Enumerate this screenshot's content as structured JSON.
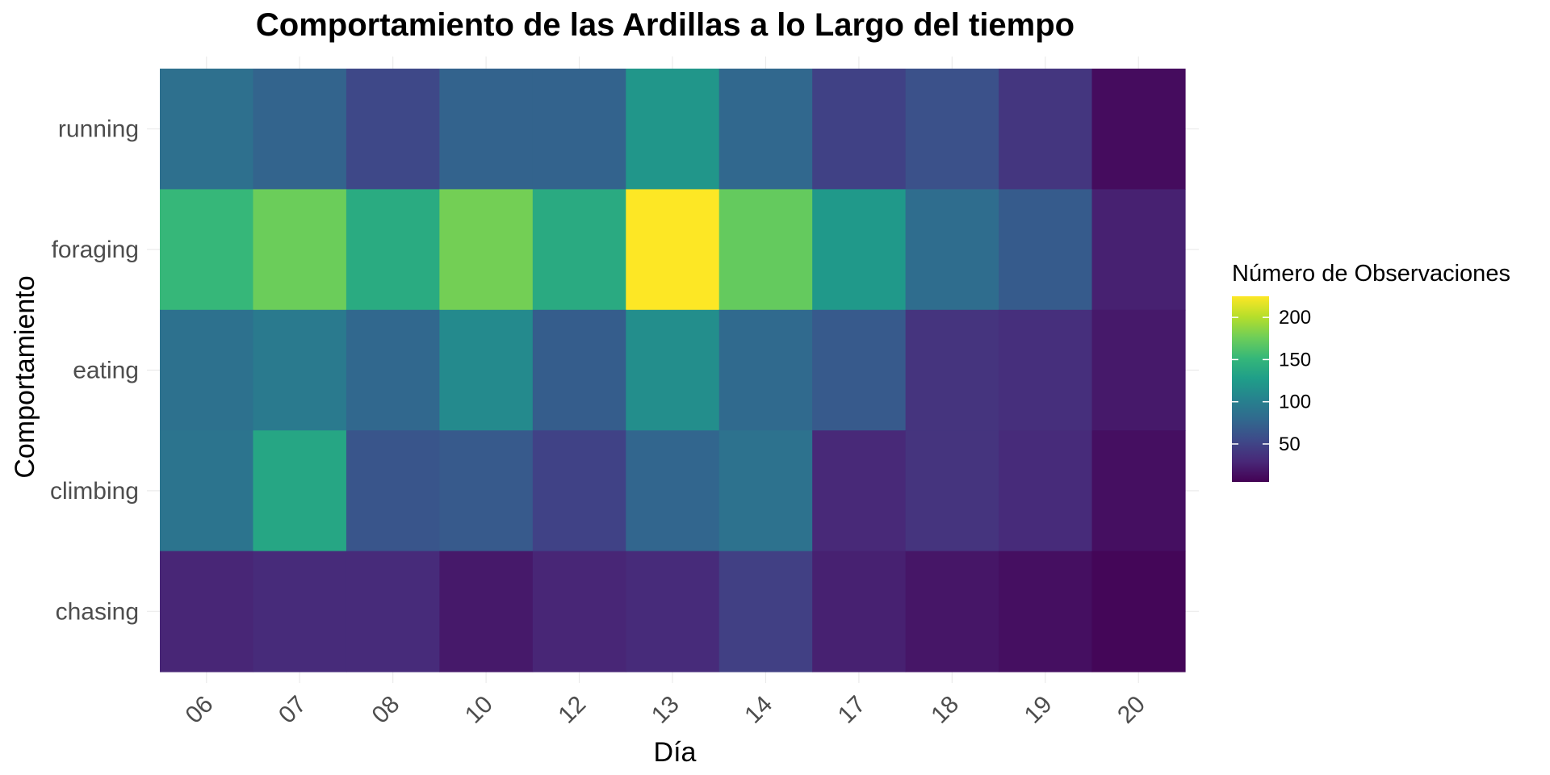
{
  "chart_data": {
    "type": "heatmap",
    "title": "Comportamiento de las Ardillas a lo Largo del tiempo",
    "xlabel": "Día",
    "ylabel": "Comportamiento",
    "x": [
      "06",
      "07",
      "08",
      "10",
      "12",
      "13",
      "14",
      "17",
      "18",
      "19",
      "20"
    ],
    "y": [
      "running",
      "foraging",
      "eating",
      "climbing",
      "chasing"
    ],
    "values": [
      [
        86,
        75,
        53,
        74,
        74,
        120,
        78,
        48,
        60,
        40,
        12
      ],
      [
        152,
        175,
        140,
        178,
        139,
        225,
        172,
        123,
        83,
        68,
        25
      ],
      [
        87,
        95,
        78,
        110,
        70,
        113,
        80,
        67,
        38,
        35,
        20
      ],
      [
        90,
        135,
        63,
        67,
        49,
        77,
        88,
        30,
        38,
        32,
        14
      ],
      [
        28,
        32,
        32,
        20,
        28,
        32,
        47,
        25,
        18,
        14,
        8
      ]
    ],
    "colorbar": {
      "title": "Número de Observaciones",
      "min": 5,
      "max": 225,
      "ticks": [
        50,
        100,
        150,
        200
      ],
      "palette": "viridis"
    },
    "grid": true,
    "legend_position": "right"
  }
}
